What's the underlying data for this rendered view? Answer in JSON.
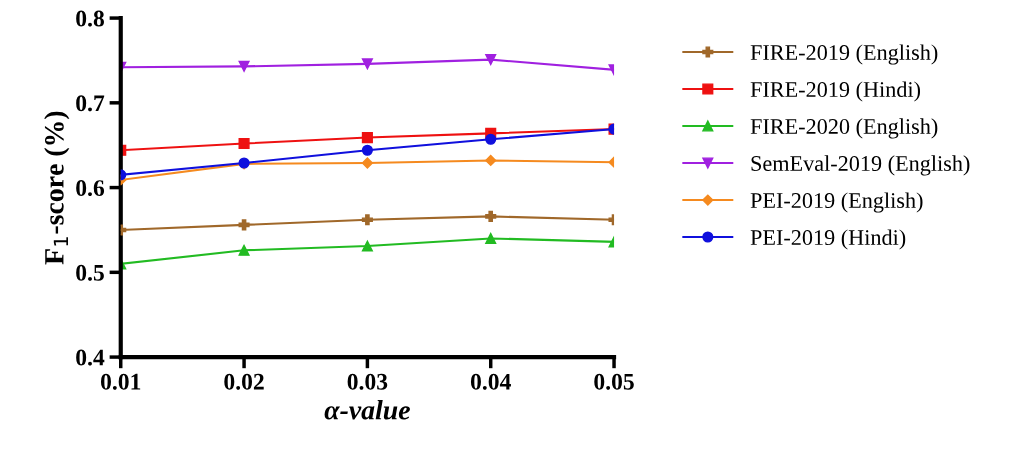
{
  "chart_data": {
    "type": "line",
    "xlabel": "α-value",
    "ylabel": "F$_{1}$-score (%)",
    "x": [
      0.01,
      0.02,
      0.03,
      0.04,
      0.05
    ],
    "xlim": [
      0.01,
      0.05
    ],
    "xticks": [
      0.01,
      0.02,
      0.03,
      0.04,
      0.05
    ],
    "ylim": [
      0.4,
      0.8
    ],
    "yticks": [
      0.4,
      0.5,
      0.6,
      0.7,
      0.8
    ],
    "grid": false,
    "legend": "right",
    "line_style": "solid",
    "series": [
      {
        "name": "FIRE-2019 (English)",
        "color": "#a0682a",
        "marker": "cross",
        "values": [
          0.55,
          0.556,
          0.562,
          0.566,
          0.562
        ]
      },
      {
        "name": "FIRE-2019 (Hindi)",
        "color": "#ee1111",
        "marker": "square",
        "values": [
          0.644,
          0.652,
          0.659,
          0.664,
          0.669
        ]
      },
      {
        "name": "FIRE-2020 (English)",
        "color": "#22bb22",
        "marker": "triangle",
        "values": [
          0.51,
          0.526,
          0.531,
          0.54,
          0.536
        ]
      },
      {
        "name": "SemEval-2019 (English)",
        "color": "#a020e0",
        "marker": "triangle-down",
        "values": [
          0.742,
          0.743,
          0.746,
          0.751,
          0.739
        ]
      },
      {
        "name": "PEI-2019 (English)",
        "color": "#f58a1f",
        "marker": "diamond",
        "values": [
          0.609,
          0.628,
          0.629,
          0.632,
          0.63
        ]
      },
      {
        "name": "PEI-2019 (Hindi)",
        "color": "#1010dd",
        "marker": "circle",
        "values": [
          0.615,
          0.629,
          0.644,
          0.657,
          0.669
        ]
      }
    ]
  }
}
